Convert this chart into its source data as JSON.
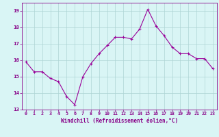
{
  "hours": [
    0,
    1,
    2,
    3,
    4,
    5,
    6,
    7,
    8,
    9,
    10,
    11,
    12,
    13,
    14,
    15,
    16,
    17,
    18,
    19,
    20,
    21,
    22,
    23
  ],
  "values": [
    15.9,
    15.3,
    15.3,
    14.9,
    14.7,
    13.8,
    13.3,
    15.0,
    15.8,
    16.4,
    16.9,
    17.4,
    17.4,
    17.3,
    17.9,
    19.1,
    18.1,
    17.5,
    16.8,
    16.4,
    16.4,
    16.1,
    16.1,
    15.5
  ],
  "line_color": "#990099",
  "marker": "P",
  "marker_size": 2.5,
  "bg_color": "#d9f5f5",
  "grid_color": "#aed4d4",
  "xlabel": "Windchill (Refroidissement éolien,°C)",
  "ylabel": "",
  "ylim": [
    13,
    19.5
  ],
  "yticks": [
    13,
    14,
    15,
    16,
    17,
    18,
    19
  ],
  "xlim": [
    -0.5,
    23.5
  ],
  "xticks": [
    0,
    1,
    2,
    3,
    4,
    5,
    6,
    7,
    8,
    9,
    10,
    11,
    12,
    13,
    14,
    15,
    16,
    17,
    18,
    19,
    20,
    21,
    22,
    23
  ],
  "tick_color": "#880088",
  "label_color": "#880088",
  "spine_color": "#880088",
  "tick_fontsize": 4.8,
  "xlabel_fontsize": 5.5
}
